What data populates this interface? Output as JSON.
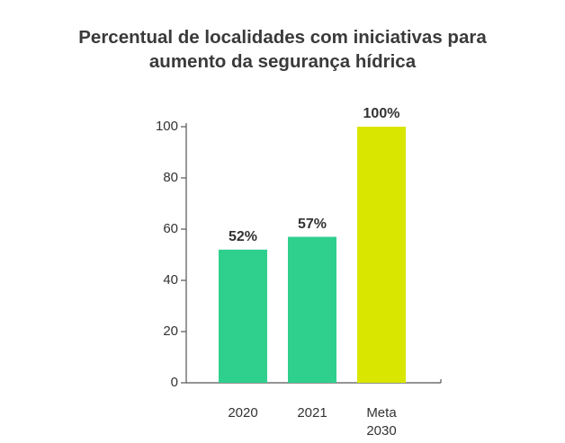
{
  "chart_data": {
    "type": "bar",
    "title": "Percentual de localidades com iniciativas para aumento da segurança hídrica",
    "categories": [
      "2020",
      "2021",
      "Meta 2030"
    ],
    "values": [
      52,
      57,
      100
    ],
    "value_labels": [
      "52%",
      "57%",
      "100%"
    ],
    "colors": [
      "#2fcf8e",
      "#2fcf8e",
      "#d9e600"
    ],
    "ylim": [
      0,
      100
    ],
    "yticks": [
      0,
      20,
      40,
      60,
      80,
      100
    ],
    "grid": false
  }
}
